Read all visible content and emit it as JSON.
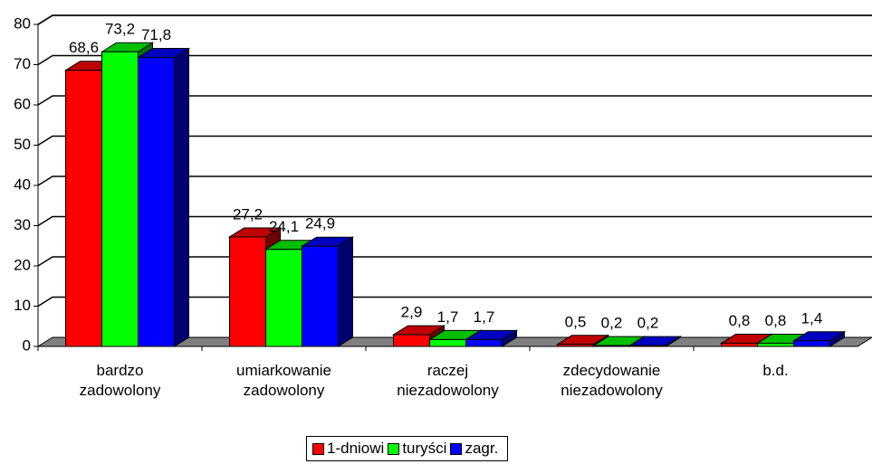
{
  "chart_data": {
    "type": "bar",
    "categories": [
      "bardzo zadowolony",
      "umiarkowanie zadowolony",
      "raczej niezadowolony",
      "zdecydowanie niezadowolony",
      "b.d."
    ],
    "series": [
      {
        "name": "1-dniowi",
        "color": "#ff0000",
        "values": [
          68.6,
          27.2,
          2.9,
          0.5,
          0.8
        ],
        "value_labels": [
          "68,6",
          "27,2",
          "2,9",
          "0,5",
          "0,8"
        ]
      },
      {
        "name": "turyści",
        "color": "#00ff00",
        "values": [
          73.2,
          24.1,
          1.7,
          0.2,
          0.8
        ],
        "value_labels": [
          "73,2",
          "24,1",
          "1,7",
          "0,2",
          "0,8"
        ]
      },
      {
        "name": "zagr.",
        "color": "#0000ff",
        "values": [
          71.8,
          24.9,
          1.7,
          0.2,
          1.4
        ],
        "value_labels": [
          "71,8",
          "24,9",
          "1,7",
          "0,2",
          "1,4"
        ]
      }
    ],
    "ylim": [
      0,
      80
    ],
    "yticks": [
      0,
      10,
      20,
      30,
      40,
      50,
      60,
      70,
      80
    ],
    "grid": true,
    "legend": "bottom"
  }
}
